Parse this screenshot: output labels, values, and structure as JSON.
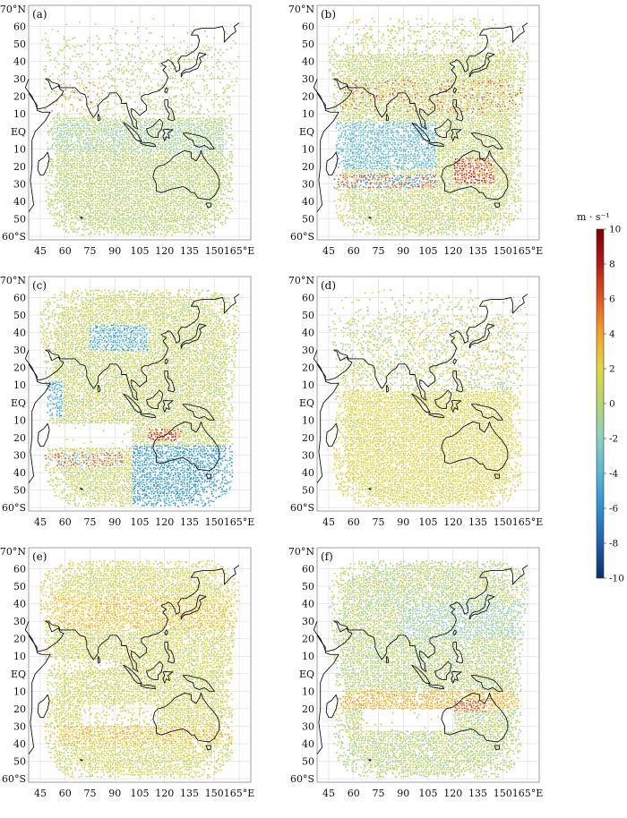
{
  "figure": {
    "panels": [
      {
        "id": "a",
        "label": "(a)"
      },
      {
        "id": "b",
        "label": "(b)"
      },
      {
        "id": "c",
        "label": "(c)"
      },
      {
        "id": "d",
        "label": "(d)"
      },
      {
        "id": "e",
        "label": "(e)"
      },
      {
        "id": "f",
        "label": "(f)"
      }
    ],
    "lat_labels": [
      "70°N",
      "60",
      "50",
      "40",
      "30",
      "20",
      "10",
      "EQ",
      "10",
      "20",
      "30",
      "40",
      "50",
      "60°S"
    ],
    "lon_labels": [
      "45",
      "60",
      "75",
      "90",
      "105",
      "120",
      "135",
      "150",
      "165°E"
    ],
    "lat_range": [
      -62,
      72
    ],
    "lon_range": [
      38,
      172
    ]
  },
  "colorbar": {
    "unit": "m · s⁻¹",
    "min": -10,
    "max": 10,
    "ticks": [
      "10",
      "8",
      "6",
      "4",
      "2",
      "0",
      "-2",
      "-4",
      "-6",
      "-8",
      "-10"
    ],
    "colors": [
      "#08306b",
      "#1f5fae",
      "#2f8fce",
      "#58b6d8",
      "#8fd0bd",
      "#b3d66f",
      "#e4d63d",
      "#f4a52a",
      "#e5561f",
      "#b51a17",
      "#7f0000"
    ]
  },
  "colors": {
    "coast": "#111111",
    "grid": "#d4d4d4",
    "neutral_point": "#9cc45e"
  }
}
